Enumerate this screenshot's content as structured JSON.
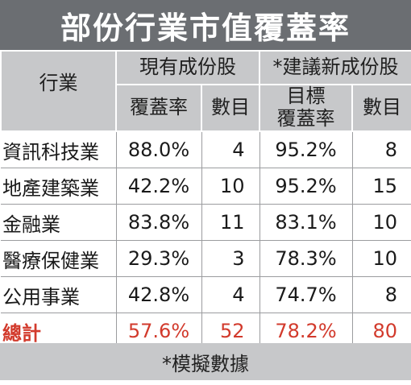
{
  "title": "部份行業市值覆蓋率",
  "header": {
    "industry": "行業",
    "group_existing": "現有成份股",
    "group_new": "*建議新成份股",
    "coverage": "覆蓋率",
    "count": "數目",
    "coverage_new_line1": "目標",
    "coverage_new_line2": "覆蓋率",
    "count_new": "數目"
  },
  "rows": [
    {
      "industry": "資訊科技業",
      "cur_cov": "88.0%",
      "cur_count": "4",
      "new_cov": "95.2%",
      "new_count": "8"
    },
    {
      "industry": "地產建築業",
      "cur_cov": "42.2%",
      "cur_count": "10",
      "new_cov": "95.2%",
      "new_count": "15"
    },
    {
      "industry": "金融業",
      "cur_cov": "83.8%",
      "cur_count": "11",
      "new_cov": "83.1%",
      "new_count": "10"
    },
    {
      "industry": "醫療保健業",
      "cur_cov": "29.3%",
      "cur_count": "3",
      "new_cov": "78.3%",
      "new_count": "10"
    },
    {
      "industry": "公用事業",
      "cur_cov": "42.8%",
      "cur_count": "4",
      "new_cov": "74.7%",
      "new_count": "8"
    }
  ],
  "total": {
    "industry": "總計",
    "cur_cov": "57.6%",
    "cur_count": "52",
    "new_cov": "78.2%",
    "new_count": "80"
  },
  "footnote": "*模擬數據",
  "colors": {
    "title_bg": "#6b6e72",
    "header_bg": "#c7c8ca",
    "total_text": "#d23a2c"
  }
}
